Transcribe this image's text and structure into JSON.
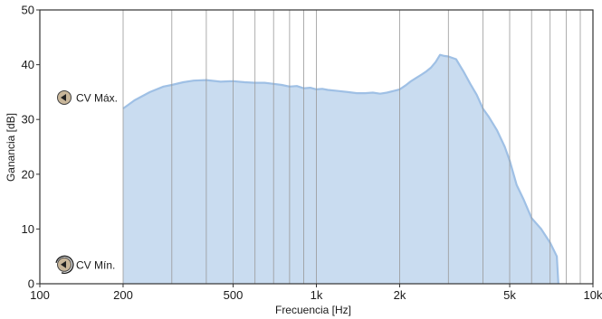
{
  "chart_data": {
    "type": "area",
    "xscale": "log",
    "xlim": [
      100,
      10000
    ],
    "ylim": [
      0,
      50
    ],
    "xlabel": "Frecuencia [Hz]",
    "ylabel": "Ganancia [dB]",
    "x_ticks": [
      {
        "value": 100,
        "label": "100"
      },
      {
        "value": 200,
        "label": "200"
      },
      {
        "value": 500,
        "label": "500"
      },
      {
        "value": 1000,
        "label": "1k"
      },
      {
        "value": 2000,
        "label": "2k"
      },
      {
        "value": 5000,
        "label": "5k"
      },
      {
        "value": 10000,
        "label": "10k"
      }
    ],
    "y_ticks": [
      0,
      10,
      20,
      30,
      40,
      50
    ],
    "grid": {
      "vertical": true,
      "horizontal": false
    },
    "annotations": [
      {
        "text": "CV Máx.",
        "y": 34,
        "icon": "knob-max-icon"
      },
      {
        "text": "CV Mín.",
        "y": 3.5,
        "icon": "knob-min-icon"
      }
    ],
    "colors": {
      "fill": "#c9dcf0",
      "line": "#9fc0e5",
      "grid": "#999999",
      "axis": "#333333"
    },
    "series": [
      {
        "x": [
          200,
          220,
          250,
          280,
          300,
          330,
          360,
          400,
          450,
          500,
          550,
          600,
          650,
          700,
          750,
          800,
          850,
          900,
          950,
          1000,
          1050,
          1100,
          1200,
          1300,
          1400,
          1500,
          1600,
          1700,
          1800,
          1900,
          2000,
          2100,
          2200,
          2300,
          2400,
          2500,
          2600,
          2700,
          2800,
          2900,
          3000,
          3200,
          3400,
          3600,
          3800,
          4000,
          4200,
          4500,
          4800,
          5000,
          5300,
          5600,
          6000,
          6500,
          7000,
          7400,
          7500
        ],
        "y": [
          32.0,
          33.5,
          35.0,
          36.0,
          36.3,
          36.8,
          37.1,
          37.2,
          36.9,
          37.0,
          36.8,
          36.7,
          36.7,
          36.5,
          36.3,
          36.0,
          36.1,
          35.7,
          35.8,
          35.5,
          35.6,
          35.4,
          35.2,
          35.0,
          34.8,
          34.8,
          34.9,
          34.7,
          34.9,
          35.2,
          35.5,
          36.2,
          37.0,
          37.6,
          38.2,
          38.8,
          39.5,
          40.5,
          41.8,
          41.6,
          41.5,
          41.0,
          38.8,
          36.5,
          34.5,
          32.0,
          30.5,
          28.0,
          25.0,
          22.5,
          18.0,
          15.5,
          12.0,
          10.0,
          7.5,
          5.0,
          0
        ]
      }
    ]
  }
}
